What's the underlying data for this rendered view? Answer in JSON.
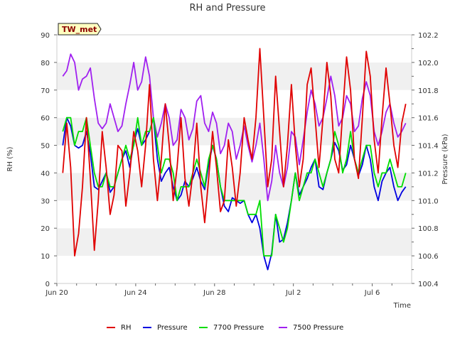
{
  "chart_data": {
    "type": "line",
    "title": "RH and Pressure",
    "xlabel": "Time",
    "ylabel": "RH (%)",
    "y2label": "Pressure (kPa)",
    "site_label": "TW_met",
    "x_tick_labels": [
      "Jun 20",
      "Jun 24",
      "Jun 28",
      "Jul 2",
      "Jul 6"
    ],
    "x_tick_values": [
      0,
      4,
      8,
      12,
      16
    ],
    "xlim": [
      0,
      18
    ],
    "ylim": [
      0,
      90
    ],
    "y_ticks": [
      0,
      10,
      20,
      30,
      40,
      50,
      60,
      70,
      80,
      90
    ],
    "y2lim": [
      100.4,
      102.2
    ],
    "y2_ticks": [
      100.4,
      100.6,
      100.8,
      101.0,
      101.2,
      101.4,
      101.6,
      101.8,
      102.0,
      102.2
    ],
    "grid": "horizontal bands",
    "legend_position": "bottom",
    "series": [
      {
        "name": "RH",
        "color": "#e00000",
        "axis": "left",
        "x": [
          0.3,
          0.5,
          0.7,
          0.9,
          1.1,
          1.3,
          1.5,
          1.7,
          1.9,
          2.1,
          2.3,
          2.5,
          2.7,
          2.9,
          3.1,
          3.3,
          3.5,
          3.7,
          3.9,
          4.1,
          4.3,
          4.5,
          4.7,
          4.9,
          5.1,
          5.3,
          5.5,
          5.7,
          5.9,
          6.1,
          6.3,
          6.5,
          6.7,
          6.9,
          7.1,
          7.3,
          7.5,
          7.7,
          7.9,
          8.1,
          8.3,
          8.5,
          8.7,
          8.9,
          9.1,
          9.3,
          9.5,
          9.7,
          9.9,
          10.1,
          10.3,
          10.5,
          10.7,
          10.9,
          11.1,
          11.3,
          11.5,
          11.7,
          11.9,
          12.1,
          12.3,
          12.5,
          12.7,
          12.9,
          13.1,
          13.3,
          13.5,
          13.7,
          13.9,
          14.1,
          14.3,
          14.5,
          14.7,
          14.9,
          15.1,
          15.3,
          15.5,
          15.7,
          15.9,
          16.1,
          16.3,
          16.5,
          16.7,
          16.9,
          17.1,
          17.3,
          17.5,
          17.7
        ],
        "values": [
          40,
          58,
          42,
          10,
          18,
          35,
          60,
          38,
          12,
          30,
          55,
          42,
          25,
          32,
          50,
          48,
          28,
          40,
          55,
          48,
          35,
          50,
          72,
          45,
          30,
          45,
          65,
          50,
          30,
          42,
          60,
          38,
          28,
          40,
          58,
          35,
          22,
          38,
          55,
          42,
          26,
          30,
          52,
          42,
          28,
          40,
          60,
          52,
          45,
          60,
          85,
          60,
          35,
          45,
          75,
          55,
          35,
          50,
          72,
          50,
          35,
          45,
          72,
          78,
          60,
          42,
          60,
          80,
          68,
          45,
          40,
          62,
          82,
          70,
          45,
          38,
          60,
          84,
          75,
          52,
          40,
          60,
          78,
          65,
          50,
          42,
          58,
          65
        ]
      },
      {
        "name": "Pressure",
        "color": "#0000e0",
        "axis": "right",
        "x": [
          0.3,
          0.5,
          0.7,
          0.9,
          1.1,
          1.3,
          1.5,
          1.7,
          1.9,
          2.1,
          2.3,
          2.5,
          2.7,
          2.9,
          3.1,
          3.3,
          3.5,
          3.7,
          3.9,
          4.1,
          4.3,
          4.5,
          4.7,
          4.9,
          5.1,
          5.3,
          5.5,
          5.7,
          5.9,
          6.1,
          6.3,
          6.5,
          6.7,
          6.9,
          7.1,
          7.3,
          7.5,
          7.7,
          7.9,
          8.1,
          8.3,
          8.5,
          8.7,
          8.9,
          9.1,
          9.3,
          9.5,
          9.7,
          9.9,
          10.1,
          10.3,
          10.5,
          10.7,
          10.9,
          11.1,
          11.3,
          11.5,
          11.7,
          11.9,
          12.1,
          12.3,
          12.5,
          12.7,
          12.9,
          13.1,
          13.3,
          13.5,
          13.7,
          13.9,
          14.1,
          14.3,
          14.5,
          14.7,
          14.9,
          15.1,
          15.3,
          15.5,
          15.7,
          15.9,
          16.1,
          16.3,
          16.5,
          16.7,
          16.9,
          17.1,
          17.3,
          17.5,
          17.7
        ],
        "values": [
          101.4,
          101.6,
          101.54,
          101.4,
          101.38,
          101.4,
          101.5,
          101.34,
          101.1,
          101.08,
          101.14,
          101.2,
          101.06,
          101.1,
          101.2,
          101.3,
          101.36,
          101.24,
          101.42,
          101.52,
          101.4,
          101.44,
          101.5,
          101.6,
          101.3,
          101.14,
          101.2,
          101.24,
          101.1,
          101.0,
          101.04,
          101.14,
          101.1,
          101.16,
          101.24,
          101.14,
          101.08,
          101.26,
          101.4,
          101.3,
          101.1,
          100.96,
          100.92,
          101.02,
          101.0,
          100.98,
          101.0,
          100.9,
          100.84,
          100.9,
          100.8,
          100.6,
          100.5,
          100.62,
          100.9,
          100.7,
          100.72,
          100.84,
          101.0,
          101.2,
          101.04,
          101.1,
          101.16,
          101.24,
          101.3,
          101.1,
          101.08,
          101.2,
          101.3,
          101.42,
          101.36,
          101.22,
          101.26,
          101.4,
          101.3,
          101.18,
          101.26,
          101.4,
          101.3,
          101.1,
          101.0,
          101.14,
          101.2,
          101.24,
          101.1,
          101.0,
          101.06,
          101.1
        ]
      },
      {
        "name": "7700 Pressure",
        "color": "#00dd00",
        "axis": "right",
        "x": [
          0.3,
          0.5,
          0.7,
          0.9,
          1.1,
          1.3,
          1.5,
          1.7,
          1.9,
          2.1,
          2.3,
          2.5,
          2.7,
          2.9,
          3.1,
          3.3,
          3.5,
          3.7,
          3.9,
          4.1,
          4.3,
          4.5,
          4.7,
          4.9,
          5.1,
          5.3,
          5.5,
          5.7,
          5.9,
          6.1,
          6.3,
          6.5,
          6.7,
          6.9,
          7.1,
          7.3,
          7.5,
          7.7,
          7.9,
          8.1,
          8.3,
          8.5,
          8.7,
          8.9,
          9.1,
          9.3,
          9.5,
          9.7,
          9.9,
          10.1,
          10.3,
          10.5,
          10.7,
          10.9,
          11.1,
          11.3,
          11.5,
          11.7,
          11.9,
          12.1,
          12.3,
          12.5,
          12.7,
          12.9,
          13.1,
          13.3,
          13.5,
          13.7,
          13.9,
          14.1,
          14.3,
          14.5,
          14.7,
          14.9,
          15.1,
          15.3,
          15.5,
          15.7,
          15.9,
          16.1,
          16.3,
          16.5,
          16.7,
          16.9,
          17.1,
          17.3,
          17.5,
          17.7
        ],
        "values": [
          101.5,
          101.6,
          101.6,
          101.4,
          101.5,
          101.5,
          101.6,
          101.4,
          101.2,
          101.1,
          101.1,
          101.2,
          101.1,
          101.1,
          101.2,
          101.3,
          101.4,
          101.3,
          101.4,
          101.6,
          101.4,
          101.5,
          101.5,
          101.6,
          101.4,
          101.2,
          101.3,
          101.3,
          101.2,
          101.0,
          101.1,
          101.1,
          101.1,
          101.2,
          101.3,
          101.2,
          101.1,
          101.3,
          101.4,
          101.3,
          101.1,
          101.0,
          101.0,
          101.0,
          101.0,
          101.0,
          101.0,
          100.9,
          100.9,
          100.9,
          101.0,
          100.6,
          100.6,
          100.6,
          100.9,
          100.8,
          100.7,
          100.8,
          101.0,
          101.2,
          101.0,
          101.1,
          101.2,
          101.2,
          101.3,
          101.2,
          101.1,
          101.2,
          101.3,
          101.5,
          101.4,
          101.2,
          101.3,
          101.5,
          101.3,
          101.2,
          101.3,
          101.4,
          101.4,
          101.2,
          101.1,
          101.2,
          101.2,
          101.3,
          101.2,
          101.1,
          101.1,
          101.2
        ]
      },
      {
        "name": "7500 Pressure",
        "color": "#a020f0",
        "axis": "right",
        "x": [
          0.3,
          0.5,
          0.7,
          0.9,
          1.1,
          1.3,
          1.5,
          1.7,
          1.9,
          2.1,
          2.3,
          2.5,
          2.7,
          2.9,
          3.1,
          3.3,
          3.5,
          3.7,
          3.9,
          4.1,
          4.3,
          4.5,
          4.7,
          4.9,
          5.1,
          5.3,
          5.5,
          5.7,
          5.9,
          6.1,
          6.3,
          6.5,
          6.7,
          6.9,
          7.1,
          7.3,
          7.5,
          7.7,
          7.9,
          8.1,
          8.3,
          8.5,
          8.7,
          8.9,
          9.1,
          9.3,
          9.5,
          9.7,
          9.9,
          10.1,
          10.3,
          10.5,
          10.7,
          10.9,
          11.1,
          11.3,
          11.5,
          11.7,
          11.9,
          12.1,
          12.3,
          12.5,
          12.7,
          12.9,
          13.1,
          13.3,
          13.5,
          13.7,
          13.9,
          14.1,
          14.3,
          14.5,
          14.7,
          14.9,
          15.1,
          15.3,
          15.5,
          15.7,
          15.9,
          16.1,
          16.3,
          16.5,
          16.7,
          16.9,
          17.1,
          17.3,
          17.5,
          17.7
        ],
        "values": [
          101.9,
          101.94,
          102.06,
          102.0,
          101.8,
          101.88,
          101.9,
          101.96,
          101.74,
          101.56,
          101.52,
          101.56,
          101.7,
          101.6,
          101.5,
          101.54,
          101.7,
          101.84,
          102.0,
          101.8,
          101.86,
          102.04,
          101.9,
          101.6,
          101.46,
          101.56,
          101.7,
          101.6,
          101.4,
          101.44,
          101.66,
          101.6,
          101.44,
          101.52,
          101.72,
          101.76,
          101.56,
          101.5,
          101.64,
          101.56,
          101.34,
          101.4,
          101.56,
          101.5,
          101.3,
          101.4,
          101.54,
          101.4,
          101.28,
          101.4,
          101.56,
          101.3,
          101.0,
          101.14,
          101.4,
          101.2,
          101.1,
          101.24,
          101.5,
          101.46,
          101.26,
          101.44,
          101.64,
          101.8,
          101.7,
          101.54,
          101.6,
          101.74,
          101.9,
          101.76,
          101.54,
          101.6,
          101.76,
          101.7,
          101.5,
          101.54,
          101.74,
          101.86,
          101.76,
          101.5,
          101.4,
          101.5,
          101.64,
          101.7,
          101.56,
          101.46,
          101.5,
          101.56
        ]
      }
    ]
  }
}
